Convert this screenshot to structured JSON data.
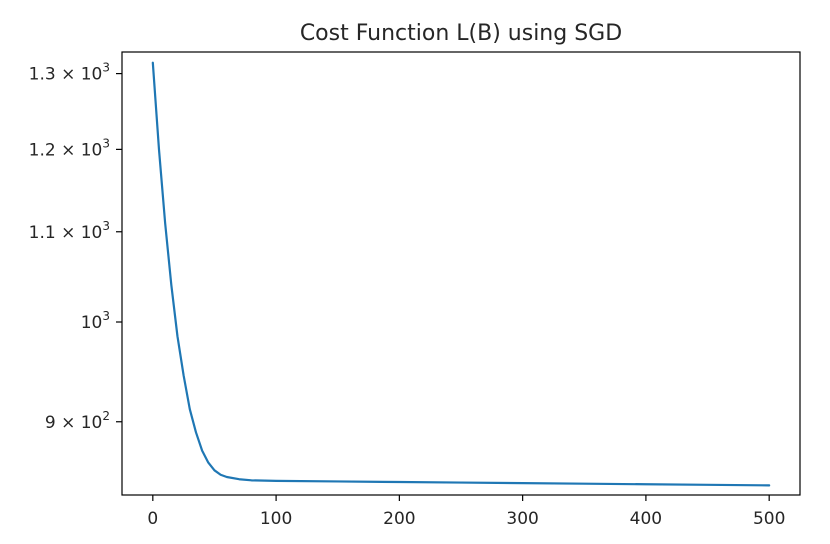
{
  "chart_data": {
    "type": "line",
    "title": "Cost Function L(B) using SGD",
    "xlabel": "",
    "ylabel": "",
    "y_scale": "log",
    "xlim": [
      -25,
      525
    ],
    "ylim": [
      833,
      1330
    ],
    "grid": false,
    "x_ticks": [
      {
        "value": 0,
        "label": "0"
      },
      {
        "value": 100,
        "label": "100"
      },
      {
        "value": 200,
        "label": "200"
      },
      {
        "value": 300,
        "label": "300"
      },
      {
        "value": 400,
        "label": "400"
      },
      {
        "value": 500,
        "label": "500"
      }
    ],
    "y_ticks": [
      {
        "value": 900,
        "mantissa": "9",
        "base": "10",
        "exponent": "2"
      },
      {
        "value": 1000,
        "mantissa": "",
        "base": "10",
        "exponent": "3"
      },
      {
        "value": 1100,
        "mantissa": "1.1",
        "base": "10",
        "exponent": "3"
      },
      {
        "value": 1200,
        "mantissa": "1.2",
        "base": "10",
        "exponent": "3"
      },
      {
        "value": 1300,
        "mantissa": "1.3",
        "base": "10",
        "exponent": "3"
      }
    ],
    "series": [
      {
        "color": "#1f77b4",
        "x": [
          0,
          5,
          10,
          15,
          20,
          25,
          30,
          35,
          40,
          45,
          50,
          55,
          60,
          70,
          80,
          100,
          150,
          200,
          250,
          300,
          350,
          400,
          450,
          500
        ],
        "y": [
          1315,
          1200,
          1110,
          1040,
          985,
          945,
          912,
          890,
          873,
          862,
          855,
          851,
          849,
          847,
          846,
          845.5,
          845,
          844.5,
          844,
          843.5,
          843,
          842.5,
          842,
          841.5
        ]
      }
    ]
  }
}
